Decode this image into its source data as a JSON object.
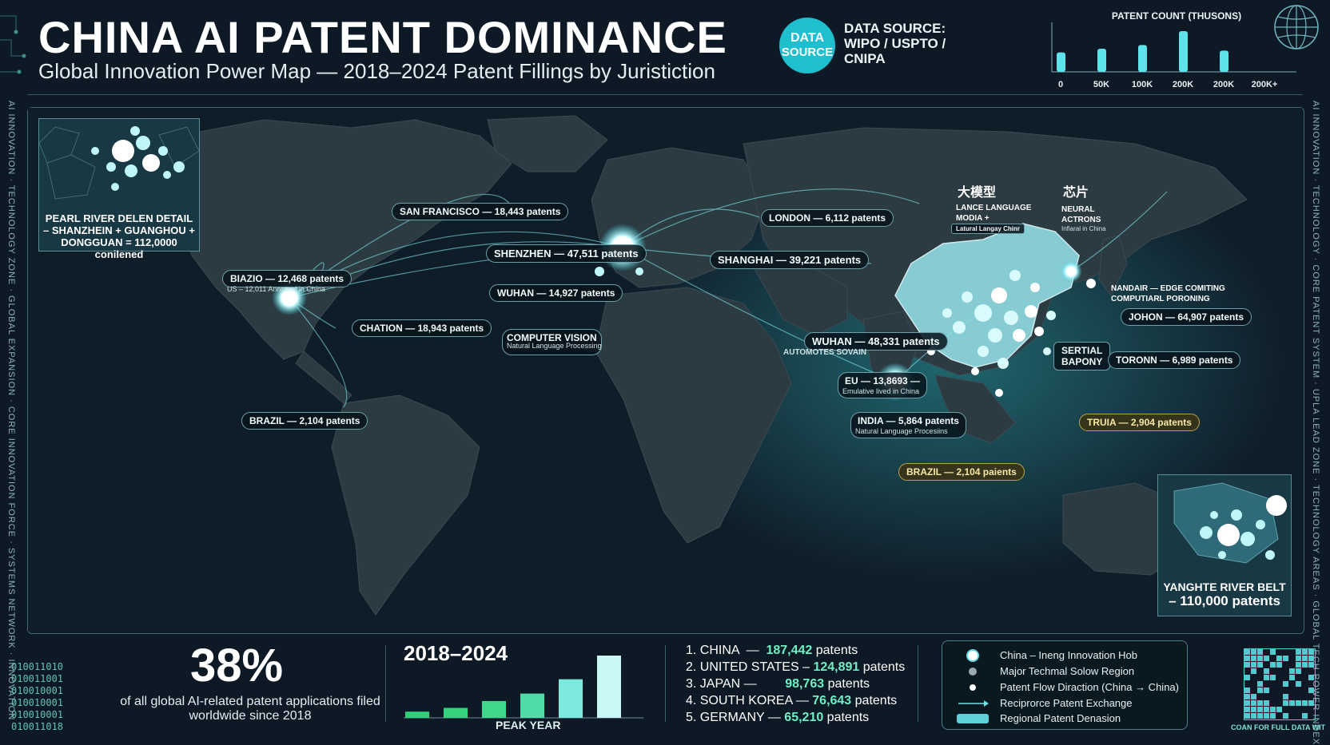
{
  "header": {
    "title": "CHINA AI PATENT DOMINANCE",
    "subtitle": "Global Innovation Power Map — 2018–2024 Patent Fillings by Juristiction",
    "badge_line1": "DATA",
    "badge_line2": "SOURCE",
    "source_text": "DATA SOURCE:\nWIPO / USPTO /\nCNIPA"
  },
  "mini_chart": {
    "title": "PATENT COUNT (THUSONS)",
    "ticks": [
      "0",
      "50K",
      "100K",
      "200K",
      "200K",
      "200K+"
    ],
    "relative_heights": [
      0.42,
      0.5,
      0.58,
      0.88,
      0.46
    ]
  },
  "side_text": {
    "left": "AI INNOVATION · TECHNOLOGY ZONE · GLOBAL EXPANSION · CORE INNOVATION FORCE · SYSTEMS NETWORK · INNOVATION",
    "right": "AI INNOVATION · TECHNOLOGY · CORE PATENT SYSTEM · UPLA LEAD ZONE · TECHNOLOGY AREAS · GLOBAL TECH POWER INDEX"
  },
  "insets": {
    "pearl_river": "PEARL RIVER DELEN DETAIL\n– SHANZHEIN + GUANGHOU +\nDONGGUAN = 112,0000 conilened",
    "yangtze_line1": "YANGHTE RIVER BELT",
    "yangtze_line2": "– 110,000 patents"
  },
  "map_pills": [
    {
      "id": "sf",
      "text": "SAN FRANCISCO — 18,443 patents",
      "style": "normal"
    },
    {
      "id": "london",
      "text": "LONDON — 6,112 patents",
      "style": "normal"
    },
    {
      "id": "shenzhen",
      "text": "SHENZHEN — 47,511 patents",
      "style": "normal"
    },
    {
      "id": "shanghai",
      "text": "SHANGHAI — 39,221 patents",
      "style": "normal"
    },
    {
      "id": "biazio",
      "text": "BIAZIO — 12,468 patents",
      "style": "normal"
    },
    {
      "id": "wuhan1",
      "text": "WUHAN — 14,927 patents",
      "style": "normal"
    },
    {
      "id": "chation",
      "text": "CHATION — 18,943 patents",
      "style": "normal"
    },
    {
      "id": "cv",
      "text": "COMPUTER VISION",
      "style": "normal"
    },
    {
      "id": "wuhan2",
      "text": "WUHAN — 48,331 patents",
      "style": "normal"
    },
    {
      "id": "johon",
      "text": "JOHON — 64,907 patents",
      "style": "normal"
    },
    {
      "id": "serial",
      "text": "SERTIAL\nBAPONY",
      "style": "normal"
    },
    {
      "id": "toronn",
      "text": "TORONN — 6,989 patents",
      "style": "normal"
    },
    {
      "id": "eu",
      "text": "EU — 13,8693 —",
      "style": "normal"
    },
    {
      "id": "india",
      "text": "INDIA — 5,864 patents",
      "style": "normal"
    },
    {
      "id": "brazil1",
      "text": "BRAZIL — 2,104 patents",
      "style": "normal"
    },
    {
      "id": "truia",
      "text": "TRUIA — 2,904 patents",
      "style": "gold"
    },
    {
      "id": "brazil2",
      "text": "BRAZIL — 2,104 paients",
      "style": "gold"
    }
  ],
  "map_notes": {
    "biazio_note": "US – 12,011 Annotted in China",
    "cv_note": "Natural Language Processing",
    "wuhan_note": "AUTOMOTES SOVAIN",
    "eu_note": "Emulative lived in China",
    "india_note": "Natural Language Procesiins",
    "llm_cn": "大模型",
    "llm_en": "LANCE LANGUAGE\nMODIA +",
    "llm_note": "Latural Langay Chinr",
    "chip_cn": "芯片",
    "chip_en": "NEURAL\nACTRONS",
    "chip_note": "Infiaral in China",
    "nandair": "NANDAIR — EDGE COMITING\nCOMPUTIARL PORONING"
  },
  "stats": {
    "percent": "38%",
    "caption": "of all global AI-related patent applications filed worldwide since 2018"
  },
  "bar_panel": {
    "title": "2018–2024",
    "caption": "PEAK YEAR",
    "relative_heights": [
      0.1,
      0.16,
      0.27,
      0.39,
      0.62,
      1.0
    ]
  },
  "rankings": [
    {
      "prefix": "1. CHINA  —  ",
      "value": "187,442",
      "suffix": " patents"
    },
    {
      "prefix": "2. UNITED STATES – ",
      "value": "124,891",
      "suffix": " patents"
    },
    {
      "prefix": "3. JAPAN —        ",
      "value": "98,763",
      "suffix": " patents"
    },
    {
      "prefix": "4. SOUTH KOREA — ",
      "value": "76,643",
      "suffix": " patents"
    },
    {
      "prefix": "5. GERMANY — ",
      "value": "65,210",
      "suffix": " patents"
    }
  ],
  "legend": [
    "China – Ineng Innovation Hob",
    "Major Techmal Solow Region",
    "Patent Flow Diraction (China → China)",
    "Reciprorce Patent Exchange",
    "Regional Patent Denasion"
  ],
  "binary": "010011010\n010011001\n010010001\n010010001\n010010001\n010011018",
  "qr_caption": "COAN FOR FULL DATA WIT",
  "colors": {
    "background": "#0d1a26",
    "land": "#2c3a42",
    "china": "#8fd8e0",
    "accent": "#1fbfcf",
    "highlight": "#6ff0c4",
    "gold": "#b9a24a"
  }
}
